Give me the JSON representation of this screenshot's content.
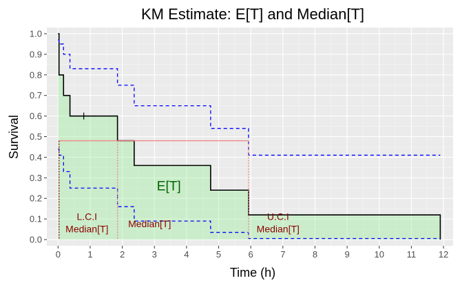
{
  "chart_data": {
    "type": "line",
    "title": "KM Estimate: E[T] and Median[T]",
    "xlabel": "Time (h)",
    "ylabel": "Survival",
    "xlim": [
      -0.35,
      12.3
    ],
    "ylim": [
      -0.03,
      1.03
    ],
    "x_ticks": [
      0,
      1,
      2,
      3,
      4,
      5,
      6,
      7,
      8,
      9,
      10,
      11,
      12
    ],
    "y_ticks": [
      0.0,
      0.1,
      0.2,
      0.3,
      0.4,
      0.5,
      0.6,
      0.7,
      0.8,
      0.9,
      1.0
    ],
    "x_tick_labels": [
      "0",
      "1",
      "2",
      "3",
      "4",
      "5",
      "6",
      "7",
      "8",
      "9",
      "10",
      "11",
      "12"
    ],
    "y_tick_labels": [
      "0.0",
      "0.1",
      "0.2",
      "0.3",
      "0.4",
      "0.5",
      "0.6",
      "0.7",
      "0.8",
      "0.9",
      "1.0"
    ],
    "grid": true,
    "series": [
      {
        "style": "solid",
        "color": "#000000",
        "x": [
          0,
          0.03,
          0.03,
          0.17,
          0.17,
          0.37,
          0.37,
          1.85,
          1.85,
          2.37,
          2.37,
          4.75,
          4.75,
          5.93,
          5.93,
          11.9,
          11.9
        ],
        "y": [
          1.0,
          1.0,
          0.8,
          0.8,
          0.7,
          0.7,
          0.6,
          0.6,
          0.48,
          0.48,
          0.36,
          0.36,
          0.24,
          0.24,
          0.12,
          0.12,
          0.0
        ]
      },
      {
        "style": "dashed",
        "color": "#0000ff",
        "x": [
          0,
          0.03,
          0.03,
          0.17,
          0.17,
          0.37,
          0.37,
          1.85,
          1.85,
          2.37,
          2.37,
          4.75,
          4.75,
          5.93,
          5.93,
          11.9
        ],
        "y": [
          0.97,
          0.97,
          0.95,
          0.95,
          0.9,
          0.9,
          0.83,
          0.83,
          0.75,
          0.75,
          0.65,
          0.65,
          0.54,
          0.54,
          0.41,
          0.41
        ]
      },
      {
        "style": "dashed",
        "color": "#0000ff",
        "x": [
          0,
          0.03,
          0.03,
          0.17,
          0.17,
          0.37,
          0.37,
          1.85,
          1.85,
          2.37,
          2.37,
          4.75,
          4.75,
          5.93,
          5.93,
          11.9
        ],
        "y": [
          0.44,
          0.44,
          0.41,
          0.41,
          0.33,
          0.33,
          0.25,
          0.25,
          0.16,
          0.16,
          0.09,
          0.09,
          0.035,
          0.035,
          0.005,
          0.005
        ]
      }
    ],
    "censor_marks": [
      {
        "x": 0.8,
        "y": 0.6
      }
    ],
    "area_fill": {
      "label": "E[T]",
      "color": "#90ee90",
      "opacity": 0.35
    },
    "median_line": {
      "y": 0.48,
      "x_start": 0.03,
      "x_end": 5.93,
      "color": "#f08080"
    },
    "vertical_markers": [
      {
        "x": 0.03,
        "color": "#8b0000",
        "label": [
          "L.C.I",
          "Median[T]"
        ]
      },
      {
        "x": 1.85,
        "color": "#f08080",
        "label": [
          "",
          "Median[T]"
        ]
      },
      {
        "x": 5.93,
        "color": "#f08080",
        "label": [
          "U.C.I",
          "Median[T]"
        ]
      }
    ],
    "annotations": [
      {
        "text": "E[T]",
        "x": 3.45,
        "y": 0.24,
        "color": "#006400"
      },
      {
        "text": "L.C.I",
        "x": 0.9,
        "y": 0.095,
        "color": "#8b0000"
      },
      {
        "text": "Median[T]",
        "x": 0.9,
        "y": 0.035,
        "color": "#8b0000"
      },
      {
        "text": "Median[T]",
        "x": 2.85,
        "y": 0.06,
        "color": "#8b0000"
      },
      {
        "text": "U.C.I",
        "x": 6.85,
        "y": 0.095,
        "color": "#8b0000"
      },
      {
        "text": "Median[T]",
        "x": 6.85,
        "y": 0.035,
        "color": "#8b0000"
      }
    ],
    "colors": {
      "panel": "#ebebeb",
      "grid_major": "#ffffff",
      "grid_minor": "#f5f5f5"
    }
  }
}
